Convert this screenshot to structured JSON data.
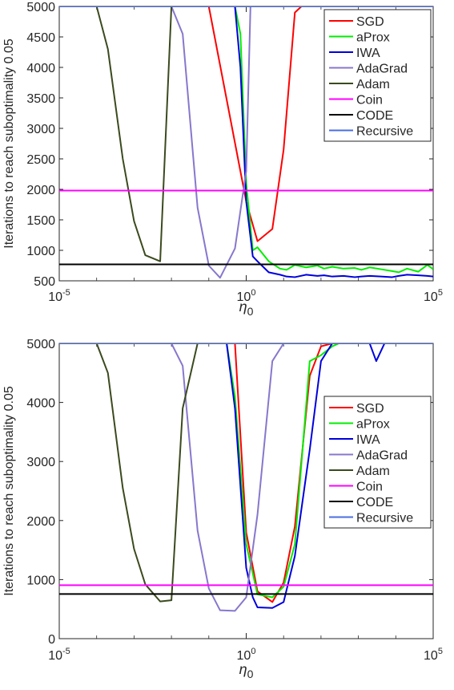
{
  "chart_data": [
    {
      "type": "line",
      "ylabel": "Iterations to reach suboptimality 0.05",
      "xlabel": "η0",
      "xscale": "log",
      "xlim": [
        1e-05,
        100000
      ],
      "ylim": [
        500,
        5000
      ],
      "xticks": [
        {
          "base": "10",
          "exp": "-5"
        },
        {
          "base": "10",
          "exp": "0"
        },
        {
          "base": "10",
          "exp": "5"
        }
      ],
      "yticks": [
        500,
        1000,
        1500,
        2000,
        2500,
        3000,
        3500,
        4000,
        4500,
        5000
      ],
      "legend_position": "top-right",
      "series": [
        {
          "name": "SGD",
          "color": "#ff0000",
          "x": [
            0.01,
            0.1,
            1,
            2,
            5,
            10,
            20,
            30,
            40,
            60
          ],
          "y": [
            5000,
            5000,
            1800,
            1150,
            1350,
            2650,
            4900,
            5000,
            5000,
            5000
          ]
        },
        {
          "name": "aProx",
          "color": "#00ee00",
          "x": [
            0.1,
            0.5,
            0.7,
            1,
            1.5,
            2,
            4,
            8,
            12,
            20,
            40,
            80,
            120,
            200,
            400,
            800,
            1200,
            2000,
            4000,
            8000,
            12000,
            20000,
            40000,
            70000,
            100000
          ],
          "y": [
            5000,
            5000,
            4550,
            2100,
            1000,
            1050,
            820,
            700,
            680,
            760,
            720,
            750,
            700,
            730,
            700,
            710,
            680,
            720,
            690,
            660,
            640,
            700,
            650,
            760,
            690
          ]
        },
        {
          "name": "IWA",
          "color": "#0000dd",
          "x": [
            0.1,
            0.5,
            0.7,
            1,
            1.5,
            2,
            4,
            8,
            12,
            20,
            40,
            80,
            120,
            200,
            400,
            800,
            1200,
            2000,
            4000,
            8000,
            12000,
            20000,
            40000,
            70000,
            100000
          ],
          "y": [
            5000,
            5000,
            4000,
            1800,
            900,
            820,
            640,
            600,
            570,
            560,
            600,
            580,
            590,
            570,
            580,
            560,
            570,
            580,
            570,
            560,
            580,
            600,
            590,
            580,
            570
          ]
        },
        {
          "name": "AdaGrad",
          "color": "#8877cc",
          "x": [
            0.002,
            0.01,
            0.02,
            0.05,
            0.1,
            0.2,
            0.5,
            1,
            1.3,
            1.6,
            2
          ],
          "y": [
            5000,
            5000,
            4550,
            1700,
            750,
            550,
            1030,
            2300,
            5000,
            5000,
            5000
          ]
        },
        {
          "name": "Adam",
          "color": "#3b4a1e",
          "x": [
            0.0001,
            0.0002,
            0.0005,
            0.001,
            0.002,
            0.005,
            0.01,
            0.015,
            0.02,
            0.05
          ],
          "y": [
            5000,
            4300,
            2500,
            1480,
            920,
            820,
            5000,
            5000,
            5000,
            5000
          ]
        },
        {
          "name": "Coin",
          "color": "#ff00ff",
          "x": [
            1e-05,
            100000
          ],
          "y": [
            1980,
            1980
          ]
        },
        {
          "name": "CODE",
          "color": "#000000",
          "x": [
            1e-05,
            100000
          ],
          "y": [
            770,
            770
          ]
        },
        {
          "name": "Recursive",
          "color": "#4a6ee0",
          "x": [
            1e-05,
            100000
          ],
          "y": [
            5000,
            5000
          ]
        }
      ]
    },
    {
      "type": "line",
      "ylabel": "Iterations to reach suboptimality 0.05",
      "xlabel": "η0",
      "xscale": "log",
      "xlim": [
        1e-05,
        100000
      ],
      "ylim": [
        0,
        5000
      ],
      "xticks": [
        {
          "base": "10",
          "exp": "-5"
        },
        {
          "base": "10",
          "exp": "0"
        },
        {
          "base": "10",
          "exp": "5"
        }
      ],
      "yticks": [
        0,
        1000,
        2000,
        3000,
        4000,
        5000
      ],
      "legend_position": "top-right",
      "series": [
        {
          "name": "SGD",
          "color": "#ff0000",
          "x": [
            0.1,
            0.5,
            1,
            2,
            5,
            10,
            20,
            50,
            100,
            200,
            500,
            1000
          ],
          "y": [
            5000,
            5000,
            1800,
            800,
            620,
            950,
            1900,
            4450,
            4950,
            5000,
            5000,
            5000
          ]
        },
        {
          "name": "aProx",
          "color": "#00ee00",
          "x": [
            0.1,
            0.3,
            0.5,
            1,
            2,
            5,
            10,
            20,
            50,
            100,
            200,
            300,
            400
          ],
          "y": [
            5000,
            5000,
            4100,
            1600,
            750,
            700,
            880,
            1600,
            4700,
            4800,
            4950,
            5000,
            5000
          ]
        },
        {
          "name": "IWA",
          "color": "#0000dd",
          "x": [
            0.1,
            0.3,
            0.5,
            1,
            1.5,
            2,
            5,
            10,
            20,
            50,
            100,
            200,
            500,
            1000,
            2000,
            3000,
            5000,
            8000,
            10000,
            20000
          ],
          "y": [
            5000,
            5000,
            3900,
            1200,
            700,
            530,
            520,
            620,
            1400,
            3200,
            4700,
            5000,
            5000,
            5000,
            5000,
            4700,
            5000,
            5000,
            5000,
            5000
          ]
        },
        {
          "name": "AdaGrad",
          "color": "#8877cc",
          "x": [
            0.002,
            0.01,
            0.02,
            0.05,
            0.1,
            0.2,
            0.5,
            1,
            2,
            5,
            10,
            20
          ],
          "y": [
            5000,
            5000,
            4620,
            1830,
            850,
            480,
            470,
            700,
            2100,
            4700,
            5000,
            5000
          ]
        },
        {
          "name": "Adam",
          "color": "#3b4a1e",
          "x": [
            0.0001,
            0.0002,
            0.0005,
            0.001,
            0.002,
            0.005,
            0.01,
            0.02,
            0.05
          ],
          "y": [
            5000,
            4500,
            2550,
            1520,
            920,
            630,
            650,
            3900,
            5000
          ]
        },
        {
          "name": "Coin",
          "color": "#ff00ff",
          "x": [
            1e-05,
            100000
          ],
          "y": [
            905,
            905
          ]
        },
        {
          "name": "CODE",
          "color": "#000000",
          "x": [
            1e-05,
            100000
          ],
          "y": [
            755,
            755
          ]
        },
        {
          "name": "Recursive",
          "color": "#4a6ee0",
          "x": [
            1e-05,
            100000
          ],
          "y": [
            5000,
            5000
          ]
        }
      ]
    }
  ]
}
